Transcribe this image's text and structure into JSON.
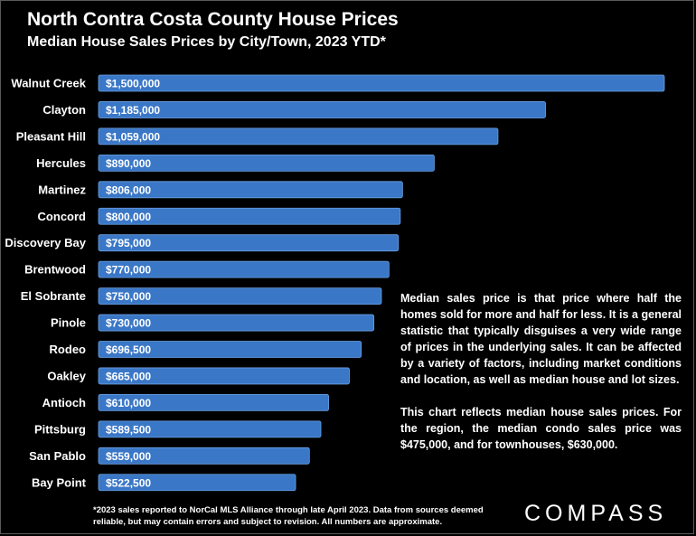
{
  "title": "North Contra Costa County House Prices",
  "subtitle": "Median House Sales Prices by City/Town, 2023 YTD*",
  "note_paragraphs": [
    "Median sales price is that price where half the homes sold for more and half for less. It is a general statistic that typically disguises a very wide range of prices in the underlying sales. It can be affected by a variety of factors, including market conditions and location, as well as median house and lot sizes.",
    "This chart reflects median house sales prices. For the region, the median condo sales price was $475,000, and for townhouses, $630,000."
  ],
  "footnote": "*2023 sales reported to NorCal MLS Alliance through late April 2023. Data from sources deemed reliable, but may contain errors and subject to revision. All numbers are approximate.",
  "logo_text": "COMPASS",
  "colors": {
    "bar": "#3a77c7",
    "bar_edge": "#6aa0e0",
    "background": "#000000"
  },
  "chart_data": {
    "type": "bar",
    "orientation": "horizontal",
    "categories": [
      "Walnut Creek",
      "Clayton",
      "Pleasant Hill",
      "Hercules",
      "Martinez",
      "Concord",
      "Discovery Bay",
      "Brentwood",
      "El Sobrante",
      "Pinole",
      "Rodeo",
      "Oakley",
      "Antioch",
      "Pittsburg",
      "San Pablo",
      "Bay Point"
    ],
    "values": [
      1500000,
      1185000,
      1059000,
      890000,
      806000,
      800000,
      795000,
      770000,
      750000,
      730000,
      696500,
      665000,
      610000,
      589500,
      559000,
      522500
    ],
    "value_labels": [
      "$1,500,000",
      "$1,185,000",
      "$1,059,000",
      "$890,000",
      "$806,000",
      "$800,000",
      "$795,000",
      "$770,000",
      "$750,000",
      "$730,000",
      "$696,500",
      "$665,000",
      "$610,000",
      "$589,500",
      "$559,000",
      "$522,500"
    ],
    "title": "North Contra Costa County House Prices",
    "xlabel": "",
    "ylabel": "",
    "xlim": [
      0,
      1500000
    ],
    "grid": false,
    "legend": "none"
  }
}
